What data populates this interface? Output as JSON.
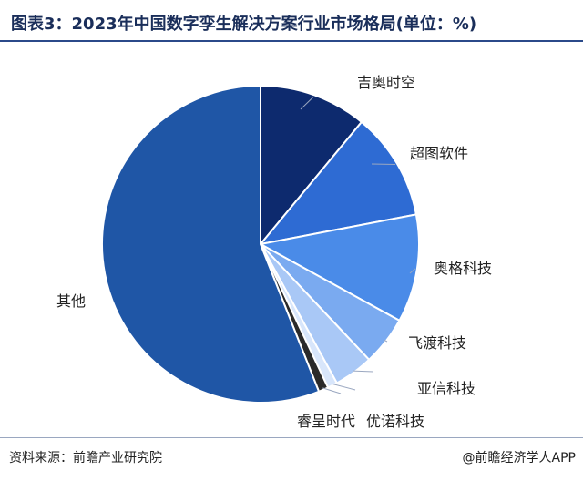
{
  "header": {
    "title": "图表3：2023年中国数字孪生解决方案行业市场格局(单位：%)"
  },
  "footer": {
    "source": "资料来源：前瞻产业研究院",
    "brand": "@前瞻经济学人APP"
  },
  "chart_data": {
    "type": "pie",
    "title": "图表3：2023年中国数字孪生解决方案行业市场格局(单位：%)",
    "categories": [
      "吉奥时空",
      "超图软件",
      "奥格科技",
      "飞渡科技",
      "亚信科技",
      "优诺科技",
      "睿呈时代",
      "其他"
    ],
    "values": [
      11,
      11,
      11,
      5,
      4,
      1,
      1,
      56
    ],
    "colors": [
      "#0d2a6e",
      "#2e6bd3",
      "#4a8be8",
      "#7aaaf0",
      "#a9c8f6",
      "#d8e6fb",
      "#2a2a2a",
      "#1f56a6"
    ],
    "legend": "none"
  }
}
